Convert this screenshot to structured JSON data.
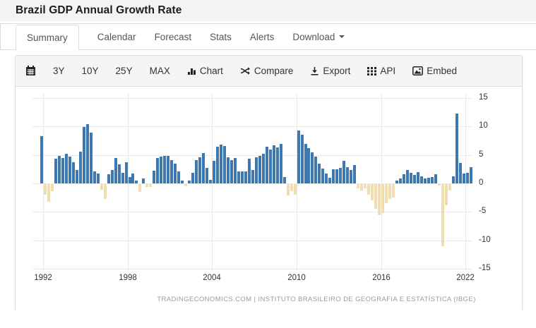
{
  "header": {
    "title": "Brazil GDP Annual Growth Rate"
  },
  "tabs": {
    "items": [
      "Summary",
      "Calendar",
      "Forecast",
      "Stats",
      "Alerts"
    ],
    "active": "Summary",
    "download_label": "Download"
  },
  "toolbar": {
    "calendar_icon": "calendar-icon",
    "ranges": [
      "3Y",
      "10Y",
      "25Y",
      "MAX"
    ],
    "chart_label": "Chart",
    "compare_label": "Compare",
    "export_label": "Export",
    "api_label": "API",
    "embed_label": "Embed"
  },
  "chart_data": {
    "type": "bar",
    "title": "Brazil GDP Annual Growth Rate",
    "unit": "percent YoY, quarterly",
    "start_quarter": "1992-Q1",
    "values": [
      8.3,
      -1.9,
      -3.1,
      -1.2,
      4.3,
      4.8,
      4.4,
      5.2,
      4.7,
      3.7,
      2.4,
      5.6,
      9.9,
      10.4,
      8.9,
      2.1,
      1.7,
      -1.0,
      -2.6,
      1.6,
      2.3,
      4.4,
      3.3,
      1.9,
      3.7,
      1.1,
      1.7,
      0.5,
      -1.4,
      0.9,
      -0.5,
      -0.5,
      2.2,
      4.4,
      4.7,
      4.8,
      4.8,
      4.1,
      3.5,
      2.1,
      0.5,
      -0.4,
      0.5,
      1.8,
      4.1,
      4.6,
      5.3,
      2.7,
      0.6,
      4.0,
      6.5,
      6.8,
      6.6,
      4.6,
      4.1,
      4.4,
      2.1,
      2.1,
      2.1,
      4.3,
      2.4,
      4.6,
      4.8,
      5.2,
      6.5,
      6.0,
      6.7,
      6.3,
      7.0,
      1.1,
      -2.0,
      -1.3,
      -1.8,
      9.3,
      8.5,
      7.0,
      6.2,
      5.4,
      4.7,
      3.5,
      2.6,
      1.7,
      1.0,
      2.5,
      2.5,
      2.7,
      4.0,
      2.8,
      2.4,
      3.2,
      -0.7,
      -1.1,
      -0.7,
      -1.8,
      -2.9,
      -4.3,
      -5.5,
      -5.1,
      -3.4,
      -2.6,
      -2.4,
      0.5,
      0.9,
      1.6,
      2.4,
      1.8,
      1.5,
      2.0,
      1.2,
      0.9,
      1.0,
      1.1,
      1.6,
      -0.3,
      -10.9,
      -3.7,
      -1.1,
      1.3,
      12.3,
      3.6,
      1.7,
      1.8,
      2.9
    ],
    "x_ticks": [
      "1992",
      "1998",
      "2004",
      "2010",
      "2016",
      "2022"
    ],
    "y_ticks": [
      15,
      10,
      5,
      0,
      -5,
      -10,
      -15
    ],
    "ylim": [
      -15,
      15
    ],
    "grid": true,
    "legend": "none",
    "colors": {
      "positive": "#3e78b0",
      "negative": "#f2ddae",
      "gridline": "#e9e9e9"
    }
  },
  "footer": {
    "attribution": "TRADINGECONOMICS.COM | INSTITUTO BRASILEIRO DE GEOGRAFIA E ESTATÍSTICA (IBGE)"
  }
}
